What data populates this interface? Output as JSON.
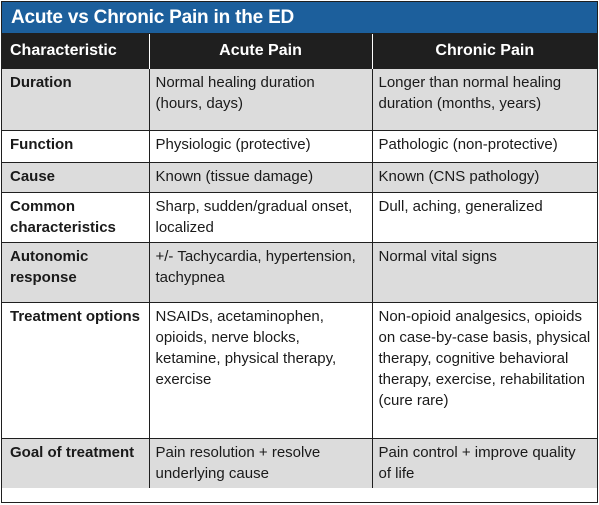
{
  "title": "Acute vs Chronic Pain in the ED",
  "headers": [
    "Characteristic",
    "Acute Pain",
    "Chronic Pain"
  ],
  "rows": [
    {
      "characteristic": "Duration",
      "acute": "Normal healing duration (hours, days)",
      "chronic": "Longer than normal healing duration (months, years)"
    },
    {
      "characteristic": "Function",
      "acute": "Physiologic (protective)",
      "chronic": "Pathologic (non-protective)"
    },
    {
      "characteristic": "Cause",
      "acute": "Known (tissue damage)",
      "chronic": "Known (CNS pathology)"
    },
    {
      "characteristic": "Common characteristics",
      "acute": "Sharp, sudden/gradual onset, localized",
      "chronic": "Dull, aching, generalized"
    },
    {
      "characteristic": "Autonomic response",
      "acute": "+/- Tachycardia, hypertension, tachypnea",
      "chronic": "Normal vital signs"
    },
    {
      "characteristic": "Treatment options",
      "acute": "NSAIDs, acetaminophen, opioids, nerve blocks, ketamine, physical therapy, exercise",
      "chronic": "Non-opioid analgesics, opioids on case-by-case basis, physical therapy, cognitive behavioral therapy, exercise, rehabilitation (cure rare)"
    },
    {
      "characteristic": "Goal of treatment",
      "acute": "Pain resolution + resolve underlying cause",
      "chronic": "Pain control + improve quality of life"
    }
  ]
}
